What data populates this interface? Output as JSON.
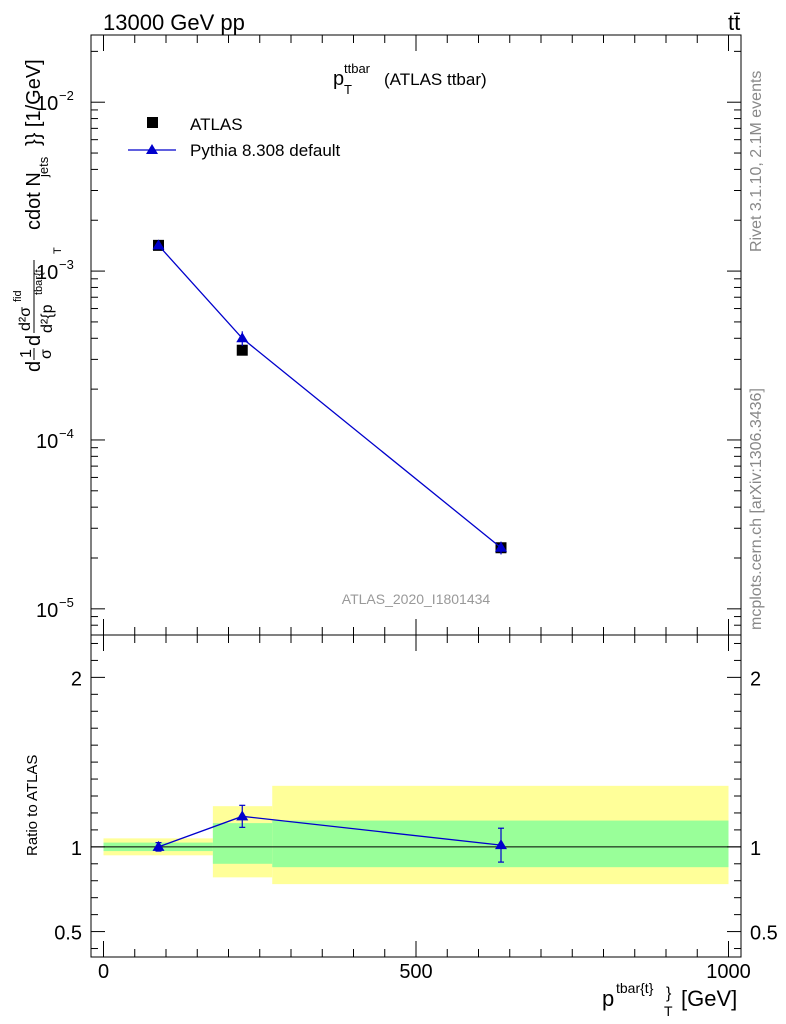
{
  "header": {
    "left": "13000 GeV pp",
    "right": "tt̄"
  },
  "side_labels": {
    "rivet": "Rivet 3.1.10,  2.1M events",
    "mcplots": "mcplots.cern.ch [arXiv:1306.3436]"
  },
  "chart_data": {
    "type": "scatter",
    "title_main": "p",
    "title_sup": "ttbar",
    "title_sub": "T",
    "title_tail": "(ATLAS ttbar)",
    "analysis_id": "ATLAS_2020_I1801434",
    "xlabel": {
      "main": "p",
      "sup": "tbar{t}",
      "close": "}",
      "sub": "T",
      "unit": "[GeV]"
    },
    "ylabel": {
      "part1": "d",
      "frac1_num": "1",
      "frac1_den": "σ",
      "part2": "d",
      "frac2_num": "d²σ",
      "frac2_num_sup": "fid",
      "frac2_den": "d²{p",
      "frac2_den_sup": "tbar{t",
      "frac2_den_sub": "T",
      "tail": "cdot N",
      "tail_sub": "jets",
      "tail_end": "}} [1/GeV]"
    },
    "ratio_ylabel": "Ratio to ATLAS",
    "xlim": [
      -20,
      1020
    ],
    "ylim_log": [
      7e-06,
      0.025
    ],
    "ratio_ylim": [
      0.35,
      2.25
    ],
    "x_ticks": [
      0,
      500,
      1000
    ],
    "x_tick_labels": [
      "0",
      "500",
      "1000"
    ],
    "y_ticks_log": [
      1e-05,
      0.0001,
      0.001,
      0.01
    ],
    "y_tick_labels": [
      {
        "base": "10",
        "exp": "−5"
      },
      {
        "base": "10",
        "exp": "−4"
      },
      {
        "base": "10",
        "exp": "−3"
      },
      {
        "base": "10",
        "exp": "−2"
      }
    ],
    "ratio_ticks": [
      0.5,
      1,
      2
    ],
    "ratio_tick_labels": [
      "0.5",
      "1",
      "2"
    ],
    "legend": [
      {
        "label": "ATLAS",
        "marker": "square",
        "color": "#000000"
      },
      {
        "label": "Pythia 8.308 default",
        "marker": "triangle",
        "color": "#0000cc"
      }
    ],
    "bins": [
      {
        "lo": 0,
        "hi": 175,
        "center": 88
      },
      {
        "lo": 175,
        "hi": 270,
        "center": 222
      },
      {
        "lo": 270,
        "hi": 1000,
        "center": 636
      }
    ],
    "series": [
      {
        "name": "ATLAS",
        "color": "#000000",
        "x": [
          88,
          222,
          636
        ],
        "y": [
          0.00142,
          0.00034,
          2.3e-05
        ],
        "yerr": [
          2e-05,
          2e-05,
          1e-06
        ]
      },
      {
        "name": "Pythia 8.308 default",
        "color": "#0000cc",
        "x": [
          88,
          222,
          636
        ],
        "y": [
          0.00142,
          0.0004,
          2.3e-05
        ],
        "yerr": [
          3e-05,
          4e-05,
          2e-06
        ]
      }
    ],
    "ratio": {
      "values": [
        1.0,
        1.18,
        1.01
      ],
      "errors": [
        0.025,
        0.065,
        0.1
      ],
      "band_inner": [
        [
          0.975,
          1.025
        ],
        [
          0.9,
          1.14
        ],
        [
          0.88,
          1.155
        ]
      ],
      "band_outer": [
        [
          0.95,
          1.05
        ],
        [
          0.82,
          1.24
        ],
        [
          0.78,
          1.36
        ]
      ]
    },
    "colors": {
      "inner_band": "#99ff99",
      "outer_band": "#ffff99",
      "mc_line": "#0000cc",
      "data_marker": "#000000",
      "side_text": "#888888",
      "watermark_text": "#999999"
    }
  }
}
